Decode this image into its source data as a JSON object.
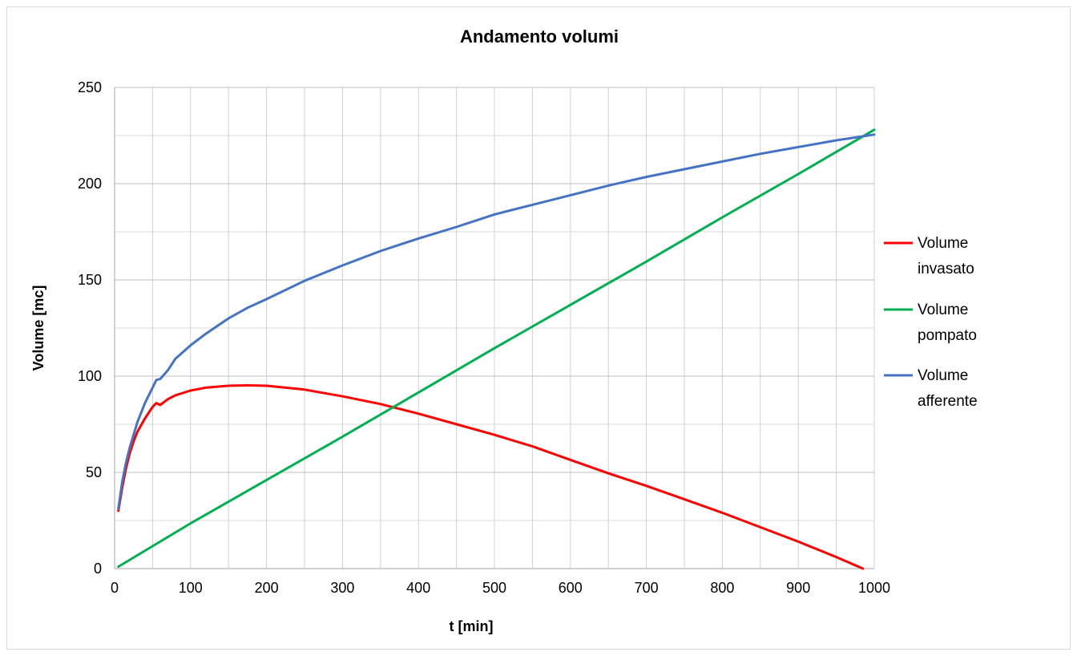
{
  "chart_data": {
    "type": "line",
    "title": "Andamento volumi",
    "xlabel": "t [min]",
    "ylabel": "Volume [mc]",
    "xlim": [
      0,
      1000
    ],
    "ylim": [
      0,
      250
    ],
    "x_ticks": [
      0,
      100,
      200,
      300,
      400,
      500,
      600,
      700,
      800,
      900,
      1000
    ],
    "y_ticks": [
      0,
      50,
      100,
      150,
      200,
      250
    ],
    "x_minor_step": 50,
    "y_minor_step": 25,
    "grid": true,
    "legend_position": "right",
    "series": [
      {
        "name": [
          "Volume",
          "invasato"
        ],
        "color": "#ff0000",
        "x": [
          5,
          10,
          15,
          20,
          25,
          30,
          40,
          50,
          55,
          60,
          70,
          80,
          100,
          120,
          150,
          175,
          200,
          250,
          300,
          350,
          400,
          450,
          500,
          550,
          600,
          650,
          700,
          750,
          800,
          850,
          900,
          950,
          985
        ],
        "y": [
          30,
          42,
          52,
          60,
          66,
          71,
          78,
          84,
          86,
          85,
          88,
          90,
          92.5,
          94,
          95,
          95.2,
          95,
          93,
          89.5,
          85.5,
          80.5,
          75,
          69.5,
          63.5,
          56.5,
          49.5,
          43,
          36,
          29,
          21.5,
          14,
          6,
          0
        ]
      },
      {
        "name": [
          "Volume",
          "pompato"
        ],
        "color": "#00b050",
        "x": [
          5,
          100,
          200,
          280,
          300,
          400,
          500,
          600,
          700,
          800,
          900,
          1000
        ],
        "y": [
          1,
          23.5,
          46,
          64,
          68.5,
          91.5,
          114.5,
          137,
          159.5,
          182.5,
          205,
          228
        ]
      },
      {
        "name": [
          "Volume",
          "afferente"
        ],
        "color": "#4472c4",
        "x": [
          5,
          10,
          15,
          20,
          30,
          40,
          50,
          55,
          60,
          70,
          80,
          100,
          120,
          150,
          175,
          200,
          250,
          300,
          350,
          400,
          450,
          500,
          550,
          600,
          650,
          700,
          750,
          800,
          850,
          900,
          950,
          1000
        ],
        "y": [
          31,
          45,
          55,
          63,
          76,
          86,
          94,
          98,
          98.5,
          103,
          109,
          116,
          122,
          130,
          135.5,
          140,
          149.5,
          157.5,
          165,
          171.5,
          177.5,
          184,
          189,
          194,
          199,
          203.5,
          207.5,
          211.5,
          215.5,
          219,
          222.5,
          225.5
        ]
      }
    ]
  }
}
